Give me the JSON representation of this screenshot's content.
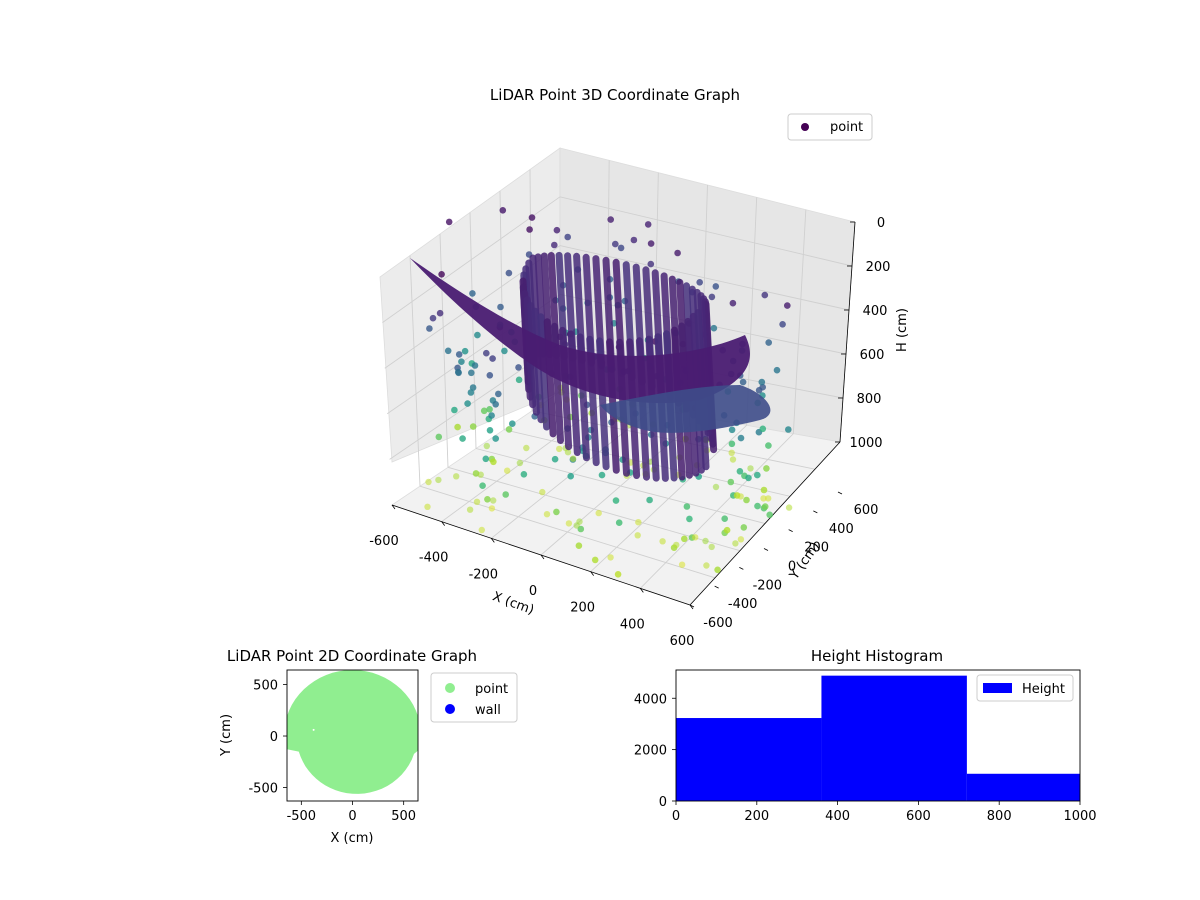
{
  "chart_data": [
    {
      "type": "scatter3d",
      "title": "LiDAR Point 3D Coordinate Graph",
      "xlabel": "X (cm)",
      "ylabel": "Y (cm)",
      "zlabel": "H (cm)",
      "xlim": [
        -600,
        600
      ],
      "ylim": [
        -600,
        600
      ],
      "zlim": [
        1000,
        0
      ],
      "x_ticks": [
        "-600",
        "-400",
        "-200",
        "0",
        "200",
        "400",
        "600"
      ],
      "y_ticks": [
        "-600",
        "-400",
        "-200",
        "0",
        "200",
        "400",
        "600"
      ],
      "z_ticks": [
        "0",
        "200",
        "400",
        "600",
        "800",
        "1000"
      ],
      "z_inverted": true,
      "colormap": "viridis",
      "legend": {
        "entries": [
          "point"
        ],
        "placement": "upper-right",
        "marker_color": "#440154"
      },
      "grid": true
    },
    {
      "type": "scatter",
      "title": "LiDAR Point 2D Coordinate Graph",
      "xlabel": "X (cm)",
      "ylabel": "Y (cm)",
      "xlim": [
        -640,
        640
      ],
      "ylim": [
        -630,
        640
      ],
      "x_ticks": [
        "-500",
        "0",
        "500"
      ],
      "y_ticks": [
        "500",
        "0",
        "-500"
      ],
      "series": [
        {
          "name": "point",
          "color": "#90ee90"
        },
        {
          "name": "wall",
          "color": "#0000ff"
        }
      ],
      "legend": {
        "placement": "outside-right"
      }
    },
    {
      "type": "bar",
      "title": "Height Histogram",
      "xlim": [
        0,
        1000
      ],
      "ylim": [
        0,
        5100
      ],
      "x_ticks": [
        "0",
        "200",
        "400",
        "600",
        "800",
        "1000"
      ],
      "y_ticks": [
        "0",
        "2000",
        "4000"
      ],
      "bins": [
        {
          "start": 0,
          "end": 360,
          "count": 3230
        },
        {
          "start": 360,
          "end": 720,
          "count": 4880
        },
        {
          "start": 720,
          "end": 1000,
          "count": 1060
        }
      ],
      "series": [
        {
          "name": "Height",
          "color": "#0000ff"
        }
      ],
      "legend": {
        "placement": "upper-right"
      }
    }
  ]
}
